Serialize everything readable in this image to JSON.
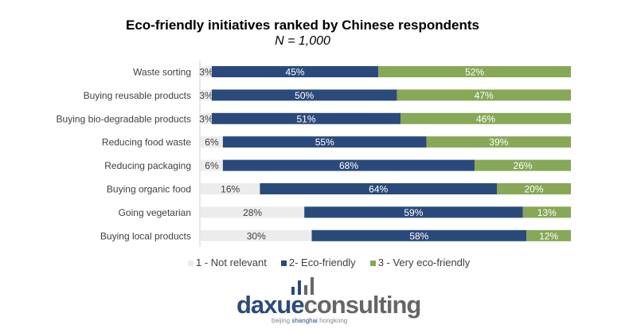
{
  "chart_data": {
    "type": "bar",
    "orientation": "horizontal",
    "stacked": true,
    "title": "Eco-friendly initiatives ranked by Chinese respondents",
    "subtitle": "N = 1,000",
    "categories": [
      "Waste sorting",
      "Buying reusable products",
      "Buying bio-degradable products",
      "Reducing food waste",
      "Reducing packaging",
      "Buying organic food",
      "Going vegetarian",
      "Buying local products"
    ],
    "series": [
      {
        "name": "1 - Not relevant",
        "color": "#ececec",
        "values": [
          3,
          3,
          3,
          6,
          6,
          16,
          28,
          30
        ]
      },
      {
        "name": "2- Eco-friendly",
        "color": "#2b4a7c",
        "values": [
          45,
          50,
          51,
          55,
          68,
          64,
          59,
          58
        ]
      },
      {
        "name": "3 - Very eco-friendly",
        "color": "#86a857",
        "values": [
          52,
          47,
          46,
          39,
          26,
          20,
          13,
          12
        ]
      }
    ],
    "xlim": [
      0,
      100
    ],
    "value_suffix": "%",
    "grid": false,
    "legend": "bottom"
  },
  "logo": {
    "part1": "daxue",
    "part2": "consulting",
    "tag1": "beijing ",
    "tag2": "shanghai",
    "tag3": " hongkong"
  }
}
